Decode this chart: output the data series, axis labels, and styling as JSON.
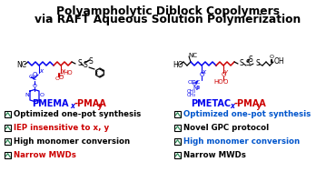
{
  "title_line1": "Polyampholytic Diblock Copolymers",
  "title_line2": "via RAFT Aqueous Solution Polymerization",
  "title_fontsize": 8.8,
  "title_fontweight": "bold",
  "bg_color": "#ffffff",
  "left_checks": [
    {
      "text": "Optimized one-pot synthesis",
      "color": "#000000"
    },
    {
      "text": "IEP insensitive to x, y",
      "color": "#cc0000"
    },
    {
      "text": "High monomer conversion",
      "color": "#000000"
    },
    {
      "text": "Narrow MWDs",
      "color": "#cc0000"
    }
  ],
  "right_checks": [
    {
      "text": "Optimized one-pot synthesis",
      "color": "#0055cc"
    },
    {
      "text": "Novel GPC protocol",
      "color": "#000000"
    },
    {
      "text": "High monomer conversion",
      "color": "#0055cc"
    },
    {
      "text": "Narrow MWDs",
      "color": "#000000"
    }
  ],
  "struct_label_fontsize": 7.0,
  "check_fontsize": 6.2,
  "blue": "#0000ee",
  "red": "#cc0000",
  "black": "#000000",
  "green_check": "#2e8b57"
}
